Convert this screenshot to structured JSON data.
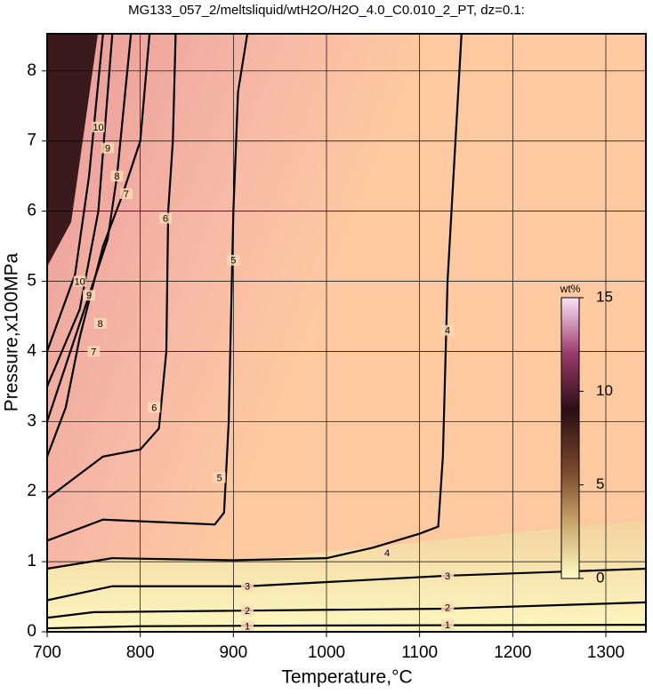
{
  "chart_data": {
    "type": "contour",
    "title": "MG133_057_2/meltsliquid/wtH2O/H2O_4.0_C0.010_2_PT, dz=0.1:",
    "x_label": "Temperature,°C",
    "y_label": "Pressure,x100MPa",
    "xlim": [
      700,
      1343
    ],
    "ylim": [
      0,
      8.53
    ],
    "xticks": [
      700,
      800,
      900,
      1000,
      1100,
      1200,
      1300
    ],
    "yticks": [
      0,
      1,
      2,
      3,
      4,
      5,
      6,
      7,
      8
    ],
    "grid": true,
    "color": "#000000",
    "series": [
      {
        "x": [
          700,
          800,
          1000,
          1343
        ],
        "values": [
          0.05,
          0.08,
          0.09,
          0.1
        ]
      },
      {
        "x": [
          700,
          750,
          900,
          1130,
          1343
        ],
        "values": [
          0.2,
          0.28,
          0.3,
          0.33,
          0.42
        ]
      },
      {
        "x": [
          700,
          770,
          915,
          1130,
          1343
        ],
        "values": [
          0.45,
          0.65,
          0.65,
          0.8,
          0.9
        ]
      },
      {
        "x": [
          700,
          770,
          900,
          1000,
          1050,
          1100,
          1120,
          1125,
          1130,
          1145
        ],
        "values": [
          0.9,
          1.05,
          1.02,
          1.05,
          1.2,
          1.4,
          1.5,
          2.5,
          5,
          8.53
        ]
      },
      {
        "x": [
          700,
          760,
          880,
          890,
          895,
          900,
          905,
          915
        ],
        "values": [
          1.3,
          1.6,
          1.53,
          1.7,
          3,
          6,
          7.7,
          8.53
        ]
      },
      {
        "x": [
          700,
          760,
          800,
          820,
          828,
          830,
          835,
          838
        ],
        "values": [
          1.9,
          2.5,
          2.6,
          2.9,
          4,
          6,
          7,
          8.53
        ]
      },
      {
        "x": [
          700,
          720,
          735,
          760,
          780,
          800,
          810
        ],
        "values": [
          2.5,
          3.2,
          4.2,
          5.5,
          6.2,
          7,
          8.53
        ]
      },
      {
        "x": [
          700,
          720,
          745,
          765,
          775,
          790
        ],
        "values": [
          3.0,
          3.8,
          4.8,
          5.6,
          6.5,
          8.53
        ]
      },
      {
        "x": [
          700,
          735,
          755,
          770
        ],
        "values": [
          3.5,
          4.6,
          6,
          8.53
        ]
      },
      {
        "x": [
          700,
          730,
          745,
          760
        ],
        "values": [
          4.0,
          5.1,
          6.5,
          8.53
        ]
      }
    ],
    "annotations": [
      {
        "text": "1",
        "x": 915,
        "y": 0.08
      },
      {
        "text": "1",
        "x": 1130,
        "y": 0.1
      },
      {
        "text": "2",
        "x": 915,
        "y": 0.3
      },
      {
        "text": "2",
        "x": 1130,
        "y": 0.35
      },
      {
        "text": "3",
        "x": 915,
        "y": 0.65
      },
      {
        "text": "3",
        "x": 1130,
        "y": 0.8
      },
      {
        "text": "4",
        "x": 1065,
        "y": 1.13
      },
      {
        "text": "4",
        "x": 1130,
        "y": 4.3
      },
      {
        "text": "5",
        "x": 885,
        "y": 2.2
      },
      {
        "text": "5",
        "x": 900,
        "y": 5.3
      },
      {
        "text": "6",
        "x": 815,
        "y": 3.2
      },
      {
        "text": "6",
        "x": 827,
        "y": 5.9
      },
      {
        "text": "7",
        "x": 750,
        "y": 4
      },
      {
        "text": "7",
        "x": 785,
        "y": 6.25
      },
      {
        "text": "8",
        "x": 757,
        "y": 4.4
      },
      {
        "text": "8",
        "x": 775,
        "y": 6.5
      },
      {
        "text": "9",
        "x": 745,
        "y": 4.8
      },
      {
        "text": "9",
        "x": 765,
        "y": 6.9
      },
      {
        "text": "10",
        "x": 735,
        "y": 5.0
      },
      {
        "text": "10",
        "x": 755,
        "y": 7.2
      }
    ],
    "colorbar": {
      "label": "wt%",
      "lim": [
        0,
        15
      ],
      "ticks": [
        0,
        5,
        10,
        15
      ]
    }
  }
}
